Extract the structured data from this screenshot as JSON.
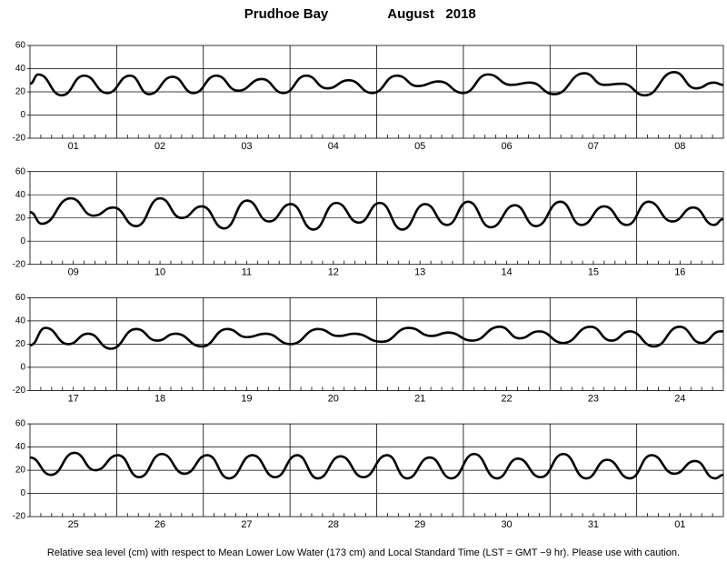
{
  "title": "Prudhoe Bay",
  "subtitle": "August   2018",
  "note": "Relative sea level (cm) with respect to Mean Lower Low Water (173 cm) and Local Standard Time (LST = GMT −9 hr). Please use with caution.",
  "chart_data": [
    {
      "type": "line",
      "categories": [
        "01",
        "02",
        "03",
        "04",
        "05",
        "06",
        "07",
        "08"
      ],
      "xlim": [
        0,
        192
      ],
      "ylim": [
        -20,
        60
      ],
      "yticks": [
        -20,
        0,
        20,
        40,
        60
      ],
      "grid": [
        0,
        20,
        40
      ],
      "color": "#000000",
      "x": [
        0,
        2.3,
        8.8,
        15,
        21.4,
        27.7,
        33,
        39.5,
        45.3,
        51.6,
        57.6,
        64.2,
        70.2,
        76.5,
        82.3,
        88.3,
        94.8,
        101.6,
        107.4,
        113.2,
        120,
        126.8,
        133.3,
        138.4,
        145.2,
        153.5,
        159,
        164,
        170.3,
        178.4,
        184.4,
        189.4,
        192
      ],
      "values": [
        27,
        35,
        17,
        34,
        19,
        34,
        18,
        33,
        19,
        34,
        21,
        31,
        19,
        34,
        23,
        30,
        19,
        34,
        25,
        29,
        19,
        35,
        26,
        28,
        18,
        36,
        26,
        27,
        17,
        37,
        23,
        28,
        26
      ]
    },
    {
      "type": "line",
      "categories": [
        "09",
        "10",
        "11",
        "12",
        "13",
        "14",
        "15",
        "16"
      ],
      "xlim": [
        0,
        192
      ],
      "ylim": [
        -20,
        60
      ],
      "yticks": [
        -20,
        0,
        20,
        40,
        60
      ],
      "grid": [
        0,
        20,
        40
      ],
      "color": "#000000",
      "x": [
        0,
        3.3,
        11.3,
        17.6,
        23.1,
        29.4,
        36,
        42,
        47.6,
        53.8,
        60.1,
        66.2,
        72.2,
        78.5,
        84.8,
        91.1,
        96.9,
        103.1,
        109.4,
        115.5,
        121.3,
        127.6,
        134.3,
        140.1,
        146.9,
        152.7,
        159,
        165.3,
        171.3,
        177.9,
        183.7,
        189.4,
        192
      ],
      "values": [
        25,
        15,
        37,
        22,
        29,
        13,
        37,
        20,
        30,
        11,
        35,
        17,
        32,
        10,
        33,
        16,
        33,
        10,
        32,
        14,
        34,
        12,
        31,
        13,
        34,
        14,
        30,
        14,
        34,
        17,
        29,
        14,
        19
      ]
    },
    {
      "type": "line",
      "categories": [
        "17",
        "18",
        "19",
        "20",
        "21",
        "22",
        "23",
        "24"
      ],
      "xlim": [
        0,
        192
      ],
      "ylim": [
        -20,
        60
      ],
      "yticks": [
        -20,
        0,
        20,
        40,
        60
      ],
      "grid": [
        0,
        20,
        40
      ],
      "color": "#000000",
      "x": [
        0,
        4.3,
        10.6,
        16.1,
        22.4,
        29.4,
        35.2,
        40.3,
        47.6,
        54.6,
        60.1,
        65.2,
        72.2,
        79.8,
        85.5,
        89.8,
        97.4,
        104.9,
        111.2,
        115.8,
        122.5,
        130.1,
        135.6,
        140.9,
        147.7,
        155.2,
        161,
        166.1,
        172.8,
        179.9,
        185.9,
        191.2,
        192
      ],
      "values": [
        19,
        34,
        20,
        29,
        16,
        33,
        23,
        29,
        18,
        33,
        26,
        29,
        20,
        33,
        27,
        29,
        22,
        34,
        27,
        30,
        23,
        35,
        25,
        31,
        21,
        35,
        23,
        31,
        18,
        35,
        21,
        31,
        31
      ]
    },
    {
      "type": "line",
      "categories": [
        "25",
        "26",
        "27",
        "28",
        "29",
        "30",
        "31",
        "01"
      ],
      "xlim": [
        0,
        192
      ],
      "ylim": [
        -20,
        60
      ],
      "yticks": [
        -20,
        0,
        20,
        40,
        60
      ],
      "grid": [
        0,
        20,
        40
      ],
      "color": "#000000",
      "x": [
        0,
        5.8,
        12.3,
        18.1,
        24.4,
        30.2,
        36.5,
        42.8,
        49.1,
        55.1,
        61.6,
        67.9,
        74,
        79.7,
        86,
        92.3,
        98.9,
        104.4,
        110.7,
        116.7,
        123,
        129.3,
        135.1,
        141.4,
        147.7,
        154,
        159.8,
        166.1,
        172.1,
        178.4,
        184.2,
        189.7,
        192
      ],
      "values": [
        31,
        16,
        35,
        20,
        33,
        14,
        34,
        17,
        33,
        13,
        33,
        14,
        33,
        13,
        32,
        14,
        33,
        13,
        31,
        13,
        34,
        13,
        30,
        14,
        34,
        13,
        29,
        13,
        33,
        17,
        28,
        13,
        16
      ]
    }
  ]
}
